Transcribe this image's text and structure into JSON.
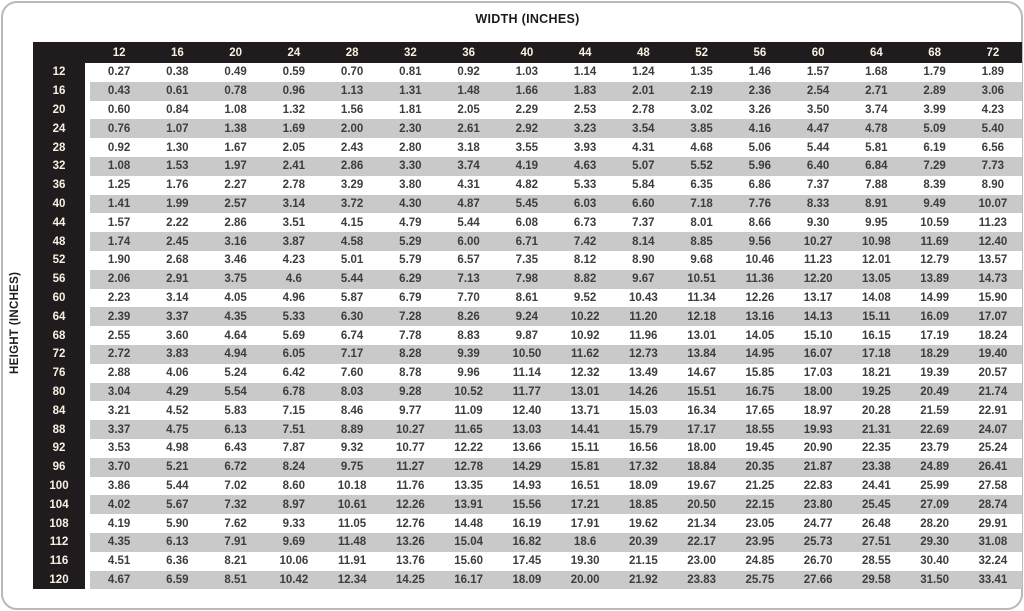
{
  "header_title": "WIDTH (INCHES)",
  "side_label": "HEIGHT (INCHES)",
  "colors": {
    "header_bg": "#201c1d",
    "header_text": "#f7f1e3",
    "stripe": "#c9c9c9",
    "cell_text": "#3d3d3f",
    "card_border": "#b9b9b9"
  },
  "table": {
    "widths": [
      "12",
      "16",
      "20",
      "24",
      "28",
      "32",
      "36",
      "40",
      "44",
      "48",
      "52",
      "56",
      "60",
      "64",
      "68",
      "72"
    ],
    "heights": [
      "12",
      "16",
      "20",
      "24",
      "28",
      "32",
      "36",
      "40",
      "44",
      "48",
      "52",
      "56",
      "60",
      "64",
      "68",
      "72",
      "76",
      "80",
      "84",
      "88",
      "92",
      "96",
      "100",
      "104",
      "108",
      "112",
      "116",
      "120"
    ],
    "rows": [
      [
        "0.27",
        "0.38",
        "0.49",
        "0.59",
        "0.70",
        "0.81",
        "0.92",
        "1.03",
        "1.14",
        "1.24",
        "1.35",
        "1.46",
        "1.57",
        "1.68",
        "1.79",
        "1.89"
      ],
      [
        "0.43",
        "0.61",
        "0.78",
        "0.96",
        "1.13",
        "1.31",
        "1.48",
        "1.66",
        "1.83",
        "2.01",
        "2.19",
        "2.36",
        "2.54",
        "2.71",
        "2.89",
        "3.06"
      ],
      [
        "0.60",
        "0.84",
        "1.08",
        "1.32",
        "1.56",
        "1.81",
        "2.05",
        "2.29",
        "2.53",
        "2.78",
        "3.02",
        "3.26",
        "3.50",
        "3.74",
        "3.99",
        "4.23"
      ],
      [
        "0.76",
        "1.07",
        "1.38",
        "1.69",
        "2.00",
        "2.30",
        "2.61",
        "2.92",
        "3.23",
        "3.54",
        "3.85",
        "4.16",
        "4.47",
        "4.78",
        "5.09",
        "5.40"
      ],
      [
        "0.92",
        "1.30",
        "1.67",
        "2.05",
        "2.43",
        "2.80",
        "3.18",
        "3.55",
        "3.93",
        "4.31",
        "4.68",
        "5.06",
        "5.44",
        "5.81",
        "6.19",
        "6.56"
      ],
      [
        "1.08",
        "1.53",
        "1.97",
        "2.41",
        "2.86",
        "3.30",
        "3.74",
        "4.19",
        "4.63",
        "5.07",
        "5.52",
        "5.96",
        "6.40",
        "6.84",
        "7.29",
        "7.73"
      ],
      [
        "1.25",
        "1.76",
        "2.27",
        "2.78",
        "3.29",
        "3.80",
        "4.31",
        "4.82",
        "5.33",
        "5.84",
        "6.35",
        "6.86",
        "7.37",
        "7.88",
        "8.39",
        "8.90"
      ],
      [
        "1.41",
        "1.99",
        "2.57",
        "3.14",
        "3.72",
        "4.30",
        "4.87",
        "5.45",
        "6.03",
        "6.60",
        "7.18",
        "7.76",
        "8.33",
        "8.91",
        "9.49",
        "10.07"
      ],
      [
        "1.57",
        "2.22",
        "2.86",
        "3.51",
        "4.15",
        "4.79",
        "5.44",
        "6.08",
        "6.73",
        "7.37",
        "8.01",
        "8.66",
        "9.30",
        "9.95",
        "10.59",
        "11.23"
      ],
      [
        "1.74",
        "2.45",
        "3.16",
        "3.87",
        "4.58",
        "5.29",
        "6.00",
        "6.71",
        "7.42",
        "8.14",
        "8.85",
        "9.56",
        "10.27",
        "10.98",
        "11.69",
        "12.40"
      ],
      [
        "1.90",
        "2.68",
        "3.46",
        "4.23",
        "5.01",
        "5.79",
        "6.57",
        "7.35",
        "8.12",
        "8.90",
        "9.68",
        "10.46",
        "11.23",
        "12.01",
        "12.79",
        "13.57"
      ],
      [
        "2.06",
        "2.91",
        "3.75",
        "4.6",
        "5.44",
        "6.29",
        "7.13",
        "7.98",
        "8.82",
        "9.67",
        "10.51",
        "11.36",
        "12.20",
        "13.05",
        "13.89",
        "14.73"
      ],
      [
        "2.23",
        "3.14",
        "4.05",
        "4.96",
        "5.87",
        "6.79",
        "7.70",
        "8.61",
        "9.52",
        "10.43",
        "11.34",
        "12.26",
        "13.17",
        "14.08",
        "14.99",
        "15.90"
      ],
      [
        "2.39",
        "3.37",
        "4.35",
        "5.33",
        "6.30",
        "7.28",
        "8.26",
        "9.24",
        "10.22",
        "11.20",
        "12.18",
        "13.16",
        "14.13",
        "15.11",
        "16.09",
        "17.07"
      ],
      [
        "2.55",
        "3.60",
        "4.64",
        "5.69",
        "6.74",
        "7.78",
        "8.83",
        "9.87",
        "10.92",
        "11.96",
        "13.01",
        "14.05",
        "15.10",
        "16.15",
        "17.19",
        "18.24"
      ],
      [
        "2.72",
        "3.83",
        "4.94",
        "6.05",
        "7.17",
        "8.28",
        "9.39",
        "10.50",
        "11.62",
        "12.73",
        "13.84",
        "14.95",
        "16.07",
        "17.18",
        "18.29",
        "19.40"
      ],
      [
        "2.88",
        "4.06",
        "5.24",
        "6.42",
        "7.60",
        "8.78",
        "9.96",
        "11.14",
        "12.32",
        "13.49",
        "14.67",
        "15.85",
        "17.03",
        "18.21",
        "19.39",
        "20.57"
      ],
      [
        "3.04",
        "4.29",
        "5.54",
        "6.78",
        "8.03",
        "9.28",
        "10.52",
        "11.77",
        "13.01",
        "14.26",
        "15.51",
        "16.75",
        "18.00",
        "19.25",
        "20.49",
        "21.74"
      ],
      [
        "3.21",
        "4.52",
        "5.83",
        "7.15",
        "8.46",
        "9.77",
        "11.09",
        "12.40",
        "13.71",
        "15.03",
        "16.34",
        "17.65",
        "18.97",
        "20.28",
        "21.59",
        "22.91"
      ],
      [
        "3.37",
        "4.75",
        "6.13",
        "7.51",
        "8.89",
        "10.27",
        "11.65",
        "13.03",
        "14.41",
        "15.79",
        "17.17",
        "18.55",
        "19.93",
        "21.31",
        "22.69",
        "24.07"
      ],
      [
        "3.53",
        "4.98",
        "6.43",
        "7.87",
        "9.32",
        "10.77",
        "12.22",
        "13.66",
        "15.11",
        "16.56",
        "18.00",
        "19.45",
        "20.90",
        "22.35",
        "23.79",
        "25.24"
      ],
      [
        "3.70",
        "5.21",
        "6.72",
        "8.24",
        "9.75",
        "11.27",
        "12.78",
        "14.29",
        "15.81",
        "17.32",
        "18.84",
        "20.35",
        "21.87",
        "23.38",
        "24.89",
        "26.41"
      ],
      [
        "3.86",
        "5.44",
        "7.02",
        "8.60",
        "10.18",
        "11.76",
        "13.35",
        "14.93",
        "16.51",
        "18.09",
        "19.67",
        "21.25",
        "22.83",
        "24.41",
        "25.99",
        "27.58"
      ],
      [
        "4.02",
        "5.67",
        "7.32",
        "8.97",
        "10.61",
        "12.26",
        "13.91",
        "15.56",
        "17.21",
        "18.85",
        "20.50",
        "22.15",
        "23.80",
        "25.45",
        "27.09",
        "28.74"
      ],
      [
        "4.19",
        "5.90",
        "7.62",
        "9.33",
        "11.05",
        "12.76",
        "14.48",
        "16.19",
        "17.91",
        "19.62",
        "21.34",
        "23.05",
        "24.77",
        "26.48",
        "28.20",
        "29.91"
      ],
      [
        "4.35",
        "6.13",
        "7.91",
        "9.69",
        "11.48",
        "13.26",
        "15.04",
        "16.82",
        "18.6",
        "20.39",
        "22.17",
        "23.95",
        "25.73",
        "27.51",
        "29.30",
        "31.08"
      ],
      [
        "4.51",
        "6.36",
        "8.21",
        "10.06",
        "11.91",
        "13.76",
        "15.60",
        "17.45",
        "19.30",
        "21.15",
        "23.00",
        "24.85",
        "26.70",
        "28.55",
        "30.40",
        "32.24"
      ],
      [
        "4.67",
        "6.59",
        "8.51",
        "10.42",
        "12.34",
        "14.25",
        "16.17",
        "18.09",
        "20.00",
        "21.92",
        "23.83",
        "25.75",
        "27.66",
        "29.58",
        "31.50",
        "33.41"
      ]
    ]
  }
}
